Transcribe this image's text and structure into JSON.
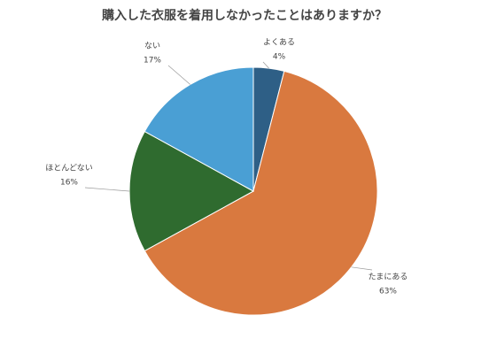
{
  "chart_data": {
    "type": "pie",
    "title": "購入した衣服を着用しなかったことはありますか？",
    "categories": [
      "よくある",
      "たまにある",
      "ほとんどない",
      "ない"
    ],
    "values": [
      4,
      63,
      16,
      17
    ],
    "value_labels": [
      "4%",
      "63%",
      "16%",
      "17%"
    ],
    "colors": [
      "#2e5f86",
      "#d9793f",
      "#2f6b2f",
      "#4a9fd4"
    ]
  }
}
